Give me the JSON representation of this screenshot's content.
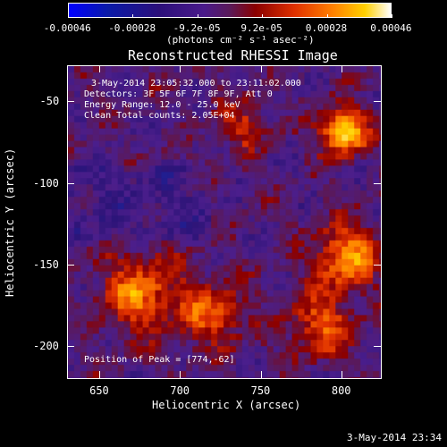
{
  "colorbar": {
    "tick_labels": [
      "-0.00046",
      "-0.00028",
      "-9.2e-05",
      "9.2e-05",
      "0.00028",
      "0.00046"
    ],
    "unit_label": "(photons cm⁻² s⁻¹ asec⁻²)"
  },
  "title": "Reconstructed RHESSI Image",
  "info": {
    "time_range": "3-May-2014 23:05:32.000 to 23:11:02.000",
    "detectors": "Detectors: 3F 5F 6F 7F 8F 9F, Att 0",
    "energy_range": "Energy Range: 12.0 - 25.0 keV",
    "clean_counts": "Clean    Total counts: 2.05E+04",
    "peak": "Position of Peak = [774,-62]"
  },
  "axes": {
    "xlabel": "Heliocentric X (arcsec)",
    "ylabel": "Heliocentric Y (arcsec)",
    "xticks": [
      "650",
      "700",
      "750",
      "800"
    ],
    "xtick_values": [
      650,
      700,
      750,
      800
    ],
    "yticks": [
      "-50",
      "-100",
      "-150",
      "-200"
    ],
    "ytick_values": [
      -50,
      -100,
      -150,
      -200
    ],
    "xlim": [
      630,
      825
    ],
    "ylim": [
      -220,
      -28
    ]
  },
  "timestamp": "3-May-2014 23:34",
  "colors": {
    "background": "#000000",
    "foreground": "#ffffff"
  }
}
